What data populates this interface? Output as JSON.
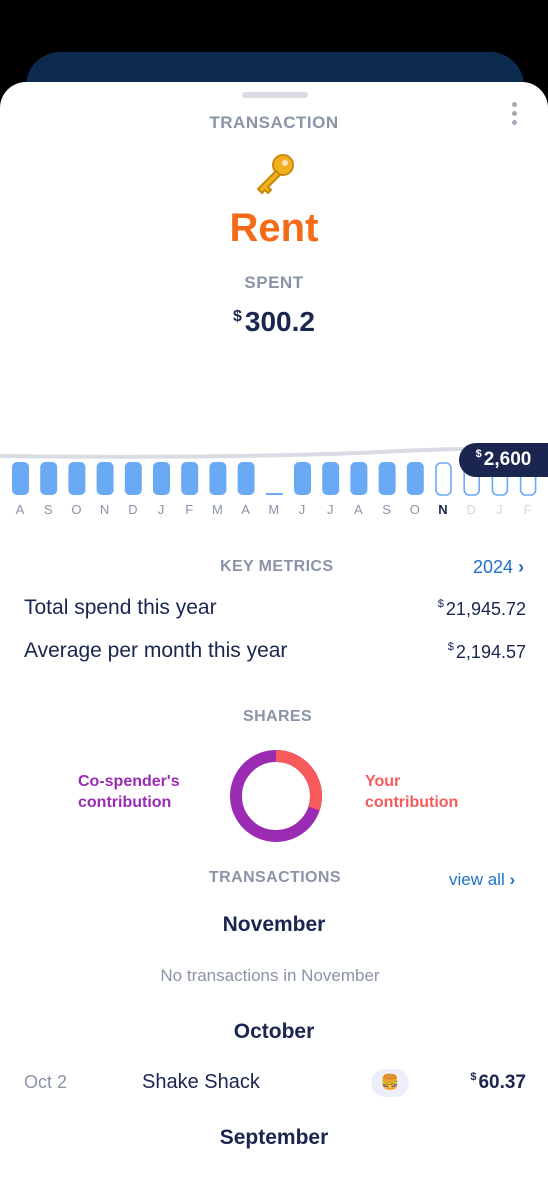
{
  "header": {
    "eyebrow": "TRANSACTION",
    "title": "Rent",
    "icon": "key-icon"
  },
  "spent": {
    "label": "SPENT",
    "currency": "$",
    "value": "300.2"
  },
  "chart_data": {
    "type": "bar",
    "categories": [
      "A",
      "S",
      "O",
      "N",
      "D",
      "J",
      "F",
      "M",
      "A",
      "M",
      "J",
      "J",
      "A",
      "S",
      "O",
      "N",
      "D",
      "J",
      "F"
    ],
    "values": [
      2600,
      2600,
      2600,
      2600,
      2600,
      2600,
      2600,
      2600,
      2600,
      0,
      2600,
      2600,
      2600,
      2600,
      2600,
      2600,
      2600,
      2600,
      2600
    ],
    "selected_index": 15,
    "future_from_index": 16,
    "tooltip": {
      "currency": "$",
      "value": "2,600"
    },
    "colors": {
      "bar": "#6aaaf5",
      "outline": "#6aaaf5",
      "trend": "#d9dce3"
    }
  },
  "key_metrics": {
    "label": "KEY METRICS",
    "year_link": "2024",
    "rows": [
      {
        "label": "Total spend this year",
        "currency": "$",
        "value": "21,945.72"
      },
      {
        "label": "Average per month this year",
        "currency": "$",
        "value": "2,194.57"
      }
    ]
  },
  "shares": {
    "label": "SHARES",
    "left_line1": "Co-spender's",
    "left_line2": "contribution",
    "right_line1": "Your",
    "right_line2": "contribution",
    "your_fraction": 0.3,
    "colors": {
      "co_spender": "#9b2bb3",
      "yours": "#f65a5a"
    }
  },
  "transactions": {
    "label": "TRANSACTIONS",
    "view_all": "view all",
    "months": [
      {
        "name": "November",
        "empty": "No transactions in November"
      },
      {
        "name": "October"
      },
      {
        "name": "September"
      }
    ],
    "items": [
      {
        "date": "Oct 2",
        "name": "Shake Shack",
        "emoji": "🍔",
        "currency": "$",
        "amount": "60.37"
      }
    ]
  }
}
